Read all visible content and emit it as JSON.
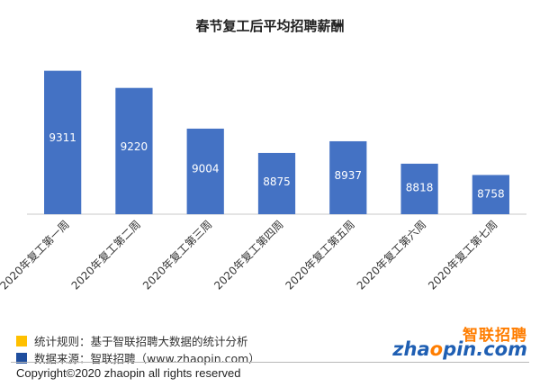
{
  "chart_data": {
    "type": "bar",
    "title": "春节复工后平均招聘薪酬",
    "categories": [
      "2020年复工第一周",
      "2020年复工第二周",
      "2020年复工第三周",
      "2020年复工第四周",
      "2020年复工第五周",
      "2020年复工第六周",
      "2020年复工第七周"
    ],
    "values": [
      9311,
      9220,
      9004,
      8875,
      8937,
      8818,
      8758
    ],
    "ylim": [
      8550,
      9400
    ],
    "bar_color": "#4472C4",
    "label_position": "inside"
  },
  "footer": {
    "rule_text": "统计规则：基于智联招聘大数据的统计分析",
    "source_text": "数据来源：智联招聘（www.zhaopin.com）",
    "rule_color": "#FFC000",
    "source_color": "#1F4E9E",
    "copyright": "Copyright©2020 zhaopin all rights reserved"
  },
  "logo": {
    "cn": "智联招聘",
    "en_blue_1": "zha",
    "en_orange": "o",
    "en_blue_2": "pin.com"
  }
}
